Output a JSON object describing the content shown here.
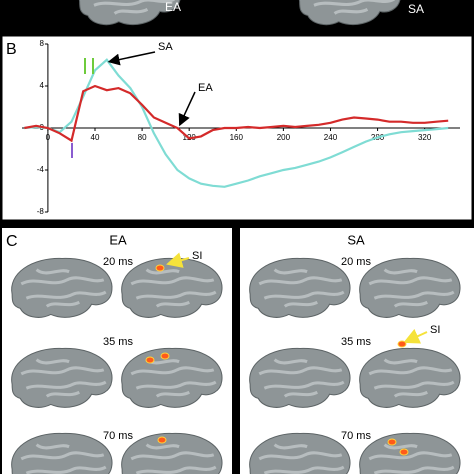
{
  "panel_a": {
    "labels": [
      "EA",
      "SA"
    ]
  },
  "chart_data": {
    "type": "line",
    "panel_label": "B",
    "x": [
      -20,
      -10,
      0,
      10,
      20,
      30,
      40,
      50,
      60,
      70,
      80,
      90,
      100,
      110,
      120,
      130,
      140,
      150,
      160,
      170,
      180,
      190,
      200,
      210,
      220,
      230,
      240,
      250,
      260,
      270,
      280,
      290,
      300,
      310,
      320,
      330,
      340
    ],
    "series": [
      {
        "name": "SA",
        "color": "#7fdcd4",
        "values": [
          0,
          0.1,
          0,
          -0.4,
          0.6,
          3,
          5.5,
          6.5,
          5,
          3.8,
          2,
          -0.5,
          -2.5,
          -4,
          -4.8,
          -5.3,
          -5.5,
          -5.6,
          -5.3,
          -5,
          -4.6,
          -4.3,
          -4,
          -3.8,
          -3.5,
          -3.2,
          -2.8,
          -2.3,
          -1.8,
          -1.3,
          -0.9,
          -0.6,
          -0.4,
          -0.3,
          -0.2,
          -0.1,
          0
        ]
      },
      {
        "name": "EA",
        "color": "#d42a2a",
        "values": [
          0,
          0.2,
          0,
          -0.5,
          -1.2,
          3.5,
          4,
          3.6,
          3.8,
          3.3,
          2.2,
          1,
          0.5,
          0,
          -1,
          -0.8,
          -0.2,
          0,
          0,
          0.1,
          0,
          0.1,
          0.2,
          0.1,
          0.2,
          0.3,
          0.5,
          0.8,
          1,
          0.9,
          0.8,
          0.6,
          0.6,
          0.5,
          0.5,
          0.6,
          0.7
        ]
      }
    ],
    "xlim": [
      -22,
      350
    ],
    "ylim": [
      -8,
      8
    ],
    "xticks": [
      0,
      40,
      80,
      120,
      160,
      200,
      240,
      280,
      320
    ],
    "yticks": [
      8,
      4,
      0,
      -4,
      -8
    ]
  },
  "panel_c": {
    "label": "C",
    "groups": [
      {
        "title": "EA",
        "times": [
          "20 ms",
          "35 ms",
          "70 ms"
        ],
        "marker": "SI"
      },
      {
        "title": "SA",
        "times": [
          "20 ms",
          "35 ms",
          "70 ms"
        ],
        "marker": "SI"
      }
    ]
  }
}
